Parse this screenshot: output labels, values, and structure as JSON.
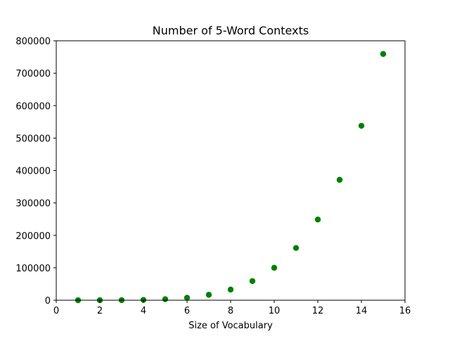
{
  "chart_data": {
    "type": "scatter",
    "title": "Number of 5-Word Contexts",
    "xlabel": "Size of Vocabulary",
    "ylabel": "",
    "xlim": [
      0,
      16
    ],
    "ylim": [
      0,
      800000
    ],
    "xticks": [
      0,
      2,
      4,
      6,
      8,
      10,
      12,
      14,
      16
    ],
    "yticks": [
      0,
      100000,
      200000,
      300000,
      400000,
      500000,
      600000,
      700000,
      800000
    ],
    "grid": false,
    "marker_color": "#008000",
    "series": [
      {
        "x": [
          1,
          2,
          3,
          4,
          5,
          6,
          7,
          8,
          9,
          10,
          11,
          12,
          13,
          14,
          15
        ],
        "y": [
          1,
          32,
          243,
          1024,
          3125,
          7776,
          16807,
          32768,
          59049,
          100000,
          161051,
          248832,
          371293,
          537824,
          759375
        ]
      }
    ]
  }
}
